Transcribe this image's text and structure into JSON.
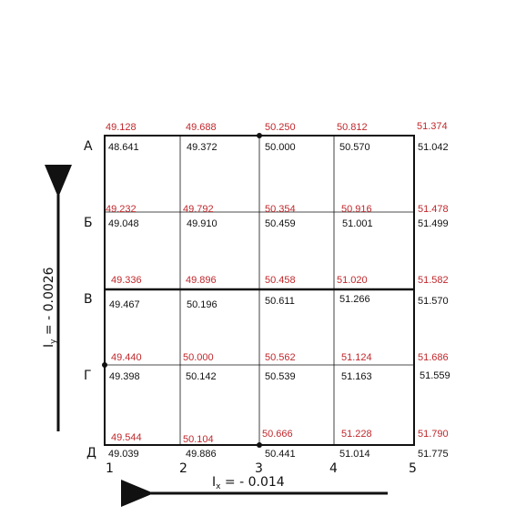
{
  "row_labels": [
    "А",
    "Б",
    "В",
    "Г",
    "Д"
  ],
  "col_labels": [
    "1",
    "2",
    "3",
    "4",
    "5"
  ],
  "design_heights": [
    [
      "49.128",
      "49.688",
      "50.250",
      "50.812",
      "51.374"
    ],
    [
      "49.232",
      "49.792",
      "50.354",
      "50.916",
      "51.478"
    ],
    [
      "49.336",
      "49.896",
      "50.458",
      "51.020",
      "51.582"
    ],
    [
      "49.440",
      "50.000",
      "50.562",
      "51.124",
      "51.686"
    ],
    [
      "49.544",
      "50.104",
      "50.666",
      "51.228",
      "51.790"
    ]
  ],
  "black_heights": [
    [
      "48.641",
      "49.372",
      "50.000",
      "50.570",
      "51.042"
    ],
    [
      "49.048",
      "49.910",
      "50.459",
      "51.001",
      "51.499"
    ],
    [
      "49.467",
      "50.196",
      "50.611",
      "51.266",
      "51.570"
    ],
    [
      "49.398",
      "50.142",
      "50.539",
      "51.163",
      "51.559"
    ],
    [
      "49.039",
      "49.886",
      "50.441",
      "51.014",
      "51.775"
    ]
  ],
  "slope_x": {
    "prefix": "I",
    "sub": "x",
    "value": " = - 0.014"
  },
  "slope_y": {
    "prefix": "I",
    "sub": "y",
    "value": " = - 0.0026"
  },
  "colors": {
    "design": "#c0282c",
    "black": "#111111"
  }
}
